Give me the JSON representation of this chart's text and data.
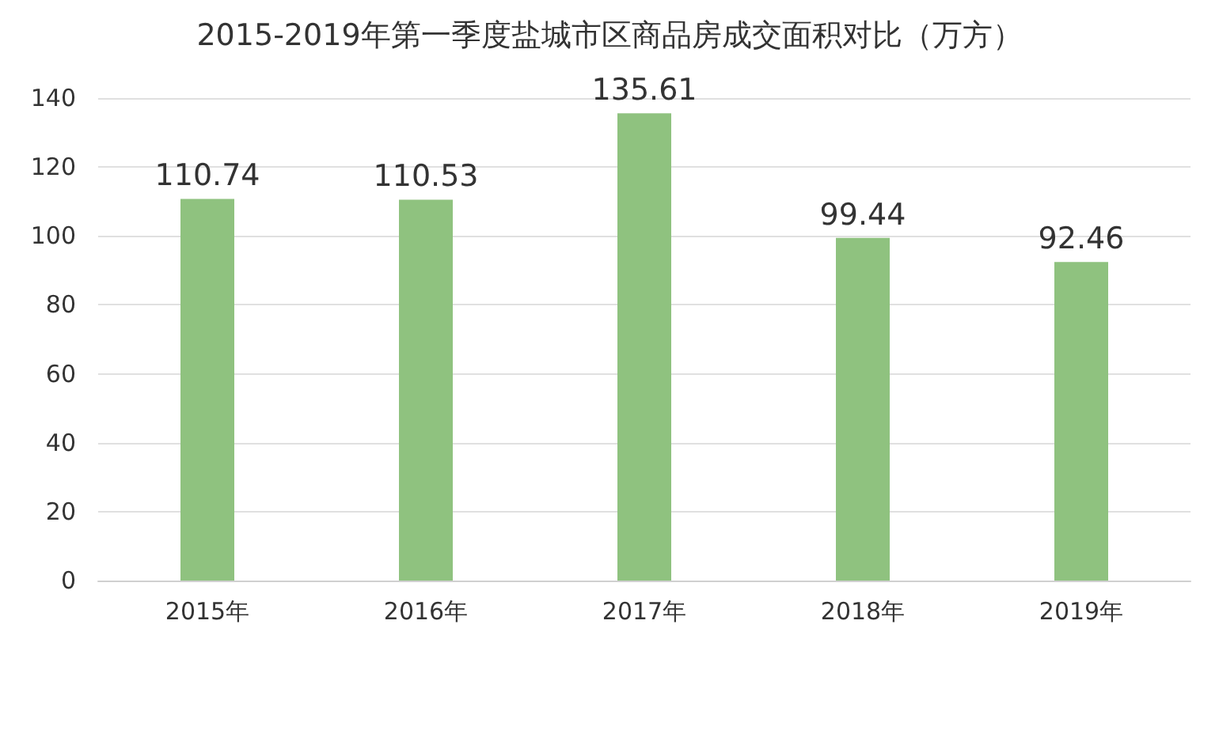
{
  "chart_data": {
    "type": "bar",
    "title": "2015-2019年第一季度盐城市区商品房成交面积对比（万方）",
    "categories": [
      "2015年",
      "2016年",
      "2017年",
      "2018年",
      "2019年"
    ],
    "values": [
      110.74,
      110.53,
      135.61,
      99.44,
      92.46
    ],
    "color": "#8fc27f",
    "ylim": [
      0,
      140
    ],
    "yticks": [
      0,
      20,
      40,
      60,
      80,
      100,
      120,
      140
    ],
    "grid": "y",
    "data_labels": true
  }
}
